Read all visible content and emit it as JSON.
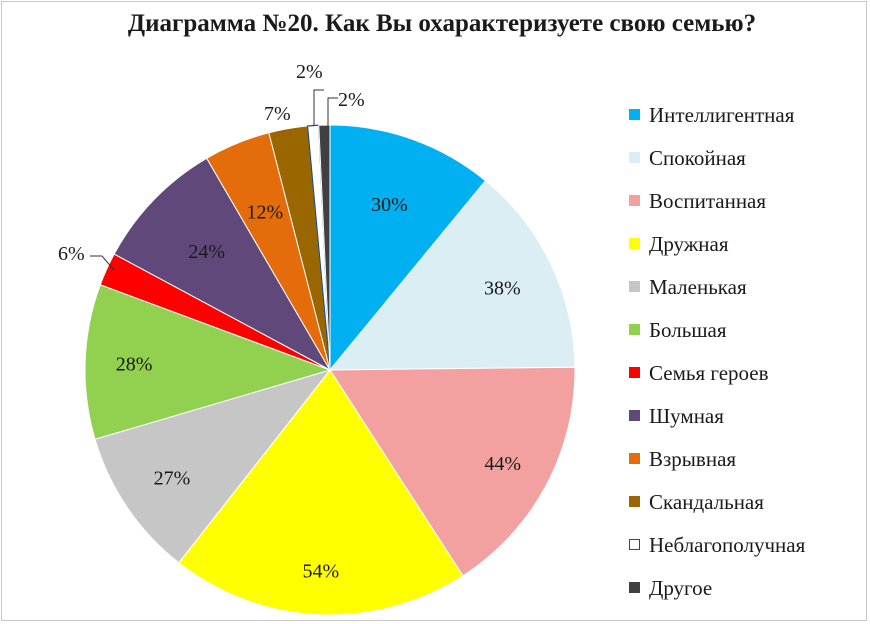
{
  "chart_data": {
    "type": "pie",
    "title": "Диаграмма №20. Как Вы охарактеризуете свою семью?",
    "categories": [
      "Интеллигентная",
      "Спокойная",
      "Воспитанная",
      "Дружная",
      "Маленькая",
      "Большая",
      "Семья героев",
      "Шумная",
      "Взрывная",
      "Скандальная",
      "Неблагополучная",
      "Другое"
    ],
    "values": [
      30,
      38,
      44,
      54,
      27,
      28,
      6,
      24,
      12,
      7,
      2,
      2
    ],
    "labels": [
      "30%",
      "38%",
      "44%",
      "54%",
      "27%",
      "28%",
      "6%",
      "24%",
      "12%",
      "7%",
      "2%",
      "2%"
    ],
    "colors": [
      "#00b0f0",
      "#dbeef4",
      "#f2a0a0",
      "#ffff00",
      "#c6c6c6",
      "#92d050",
      "#ff0000",
      "#60497a",
      "#e46c0a",
      "#996600",
      "#ffffff",
      "#404040"
    ],
    "legend_position": "right"
  }
}
